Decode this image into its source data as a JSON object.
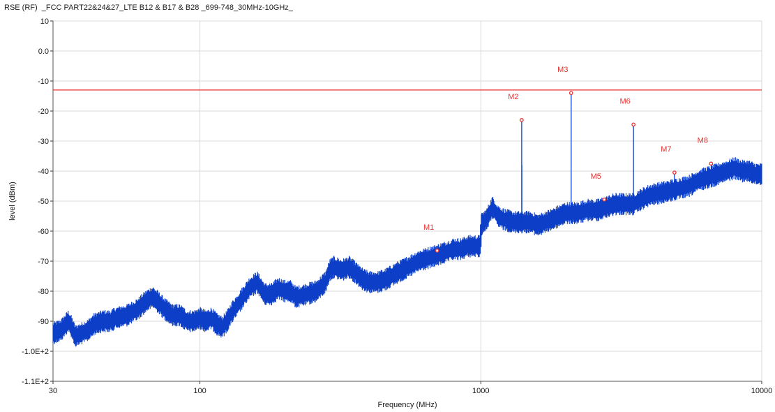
{
  "chart_data": {
    "type": "line",
    "title": "RSE (RF)  _FCC PART22&24&27_LTE B12 & B17 & B28 _699-748_30MHz-10GHz_",
    "xlabel": "Frequency (MHz)",
    "ylabel": "level (dBm)",
    "x_scale": "log",
    "xlim": [
      30,
      10000
    ],
    "ylim": [
      -110,
      10
    ],
    "grid": true,
    "x_ticks": [
      {
        "value": 30,
        "label": "30"
      },
      {
        "value": 100,
        "label": "100"
      },
      {
        "value": 1000,
        "label": "1000"
      },
      {
        "value": 10000,
        "label": "10000"
      }
    ],
    "y_ticks": [
      {
        "value": 10,
        "label": "10"
      },
      {
        "value": 0,
        "label": "0.0"
      },
      {
        "value": -10,
        "label": "-10"
      },
      {
        "value": -20,
        "label": "-20"
      },
      {
        "value": -30,
        "label": "-30"
      },
      {
        "value": -40,
        "label": "-40"
      },
      {
        "value": -50,
        "label": "-50"
      },
      {
        "value": -60,
        "label": "-60"
      },
      {
        "value": -70,
        "label": "-70"
      },
      {
        "value": -80,
        "label": "-80"
      },
      {
        "value": -90,
        "label": "-90"
      },
      {
        "value": -100,
        "label": "-1.0E+2"
      },
      {
        "value": -110,
        "label": "-1.1E+2"
      }
    ],
    "limit_line": {
      "value": -13,
      "color": "#e8312f"
    },
    "series": [
      {
        "color": "#0c3ec8",
        "x": [
          30,
          32,
          34,
          35,
          36,
          38,
          40,
          42,
          45,
          48,
          50,
          55,
          60,
          65,
          68,
          70,
          75,
          80,
          85,
          90,
          95,
          100,
          105,
          110,
          115,
          120,
          125,
          130,
          135,
          140,
          150,
          160,
          165,
          170,
          180,
          190,
          200,
          210,
          220,
          240,
          260,
          280,
          290,
          300,
          320,
          340,
          350,
          360,
          380,
          400,
          430,
          460,
          500,
          550,
          600,
          650,
          700,
          750,
          800,
          850,
          900,
          950,
          999,
          1000,
          1050,
          1100,
          1150,
          1200,
          1300,
          1400,
          1500,
          1600,
          1700,
          1800,
          1900,
          2000,
          2200,
          2400,
          2600,
          2800,
          3000,
          3200,
          3500,
          3800,
          4000,
          4500,
          5000,
          5500,
          6000,
          6500,
          7000,
          7500,
          8000,
          8500,
          9000,
          9500,
          10000
        ],
        "y": [
          -94,
          -93,
          -90,
          -92,
          -95,
          -94,
          -93,
          -91,
          -90,
          -90,
          -89,
          -88,
          -86,
          -83,
          -82,
          -83,
          -86,
          -88,
          -88,
          -90,
          -90,
          -89,
          -90,
          -89,
          -91,
          -92,
          -90,
          -87,
          -85,
          -83,
          -79,
          -77,
          -79,
          -81,
          -81,
          -79,
          -80,
          -80,
          -82,
          -81,
          -80,
          -77,
          -73,
          -72,
          -73,
          -72,
          -73,
          -74,
          -76,
          -77,
          -77,
          -76,
          -74,
          -72,
          -70,
          -69,
          -68,
          -67,
          -66,
          -66,
          -65,
          -65,
          -65,
          -58,
          -56,
          -52,
          -55,
          -56,
          -57,
          -57,
          -57,
          -58,
          -57,
          -56,
          -55,
          -54,
          -54,
          -53,
          -53,
          -52,
          -51,
          -51,
          -51,
          -49,
          -48,
          -47,
          -46,
          -45,
          -43,
          -42,
          -41,
          -40,
          -39,
          -40,
          -40,
          -41,
          -41
        ]
      }
    ],
    "spikes": [
      {
        "x": 1398,
        "y": -23
      },
      {
        "x": 1400,
        "y": -38
      },
      {
        "x": 2097,
        "y": -14
      },
      {
        "x": 3495,
        "y": -24.5
      },
      {
        "x": 4890,
        "y": -41
      },
      {
        "x": 5590,
        "y": -43
      }
    ],
    "markers": [
      {
        "name": "M1",
        "x": 699,
        "y": -66.5
      },
      {
        "name": "M2",
        "x": 1398,
        "y": -23
      },
      {
        "name": "M3",
        "x": 2097,
        "y": -14
      },
      {
        "name": "M5",
        "x": 2750,
        "y": -49.5
      },
      {
        "name": "M6",
        "x": 3495,
        "y": -24.5
      },
      {
        "name": "M7",
        "x": 4890,
        "y": -40.5
      },
      {
        "name": "M8",
        "x": 6600,
        "y": -37.5
      }
    ]
  }
}
